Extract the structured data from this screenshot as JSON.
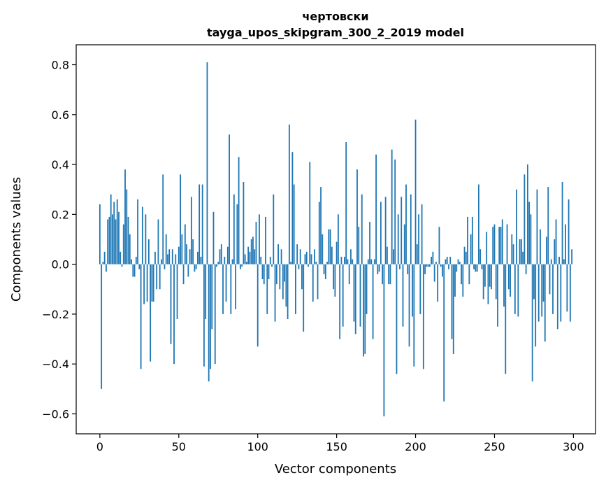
{
  "chart_data": {
    "type": "bar",
    "title": "чертовски",
    "subtitle": "tayga_upos_skipgram_300_2_2019 model",
    "xlabel": "Vector components",
    "ylabel": "Components values",
    "xlim": [
      -15,
      314
    ],
    "ylim": [
      -0.68,
      0.88
    ],
    "xticks": [
      0,
      50,
      100,
      150,
      200,
      250,
      300
    ],
    "yticks": [
      -0.6,
      -0.4,
      -0.2,
      0.0,
      0.2,
      0.4,
      0.6,
      0.8
    ],
    "ytick_labels": [
      "−0.6",
      "−0.4",
      "−0.2",
      "0.0",
      "0.2",
      "0.4",
      "0.6",
      "0.8"
    ],
    "bar_color": "#1f77b4",
    "grid": false,
    "values": [
      0.24,
      -0.5,
      0.01,
      0.05,
      -0.03,
      0.18,
      0.19,
      0.28,
      0.2,
      0.25,
      0.18,
      0.26,
      0.21,
      0.05,
      -0.01,
      0.16,
      0.38,
      0.3,
      0.19,
      0.12,
      0.02,
      -0.05,
      -0.05,
      0.03,
      0.26,
      -0.02,
      -0.42,
      0.23,
      -0.16,
      0.2,
      -0.15,
      0.1,
      -0.39,
      -0.15,
      -0.15,
      0.05,
      -0.1,
      0.18,
      -0.1,
      0.02,
      0.36,
      -0.02,
      0.12,
      0.04,
      0.06,
      -0.32,
      0.06,
      -0.4,
      0.04,
      -0.22,
      0.07,
      0.36,
      0.12,
      -0.08,
      0.16,
      0.08,
      -0.05,
      0.06,
      0.27,
      0.1,
      -0.03,
      -0.02,
      0.05,
      0.32,
      0.03,
      0.32,
      -0.41,
      -0.22,
      0.81,
      -0.47,
      -0.42,
      -0.26,
      0.21,
      -0.4,
      -0.01,
      0.01,
      0.06,
      0.08,
      -0.2,
      0.03,
      -0.15,
      0.07,
      0.52,
      -0.2,
      0.02,
      0.28,
      -0.18,
      0.24,
      0.43,
      -0.02,
      -0.01,
      0.33,
      0.04,
      0.01,
      0.07,
      0.05,
      0.1,
      0.11,
      0.06,
      0.17,
      -0.33,
      0.2,
      0.03,
      -0.06,
      -0.08,
      0.19,
      -0.2,
      -0.06,
      0.03,
      -0.01,
      0.28,
      -0.23,
      -0.08,
      0.08,
      -0.1,
      0.06,
      -0.14,
      -0.07,
      -0.17,
      -0.22,
      0.56,
      0.01,
      0.45,
      0.32,
      -0.2,
      0.08,
      -0.02,
      0.06,
      -0.1,
      -0.27,
      0.04,
      0.05,
      -0.01,
      0.41,
      0.04,
      -0.15,
      0.06,
      0.01,
      -0.14,
      0.25,
      0.31,
      0.12,
      -0.04,
      -0.06,
      0.01,
      0.14,
      0.14,
      0.07,
      -0.1,
      -0.13,
      0.09,
      0.2,
      -0.3,
      0.03,
      -0.25,
      0.03,
      0.49,
      0.02,
      -0.08,
      0.06,
      0.02,
      -0.23,
      -0.28,
      0.38,
      0.15,
      -0.25,
      0.28,
      -0.37,
      -0.36,
      -0.2,
      0.02,
      0.17,
      0.02,
      -0.3,
      0.02,
      0.44,
      -0.04,
      -0.03,
      0.25,
      -0.08,
      -0.61,
      0.27,
      0.07,
      -0.08,
      -0.08,
      0.46,
      0.06,
      0.42,
      -0.44,
      0.2,
      -0.02,
      0.27,
      -0.25,
      0.16,
      0.32,
      -0.04,
      -0.33,
      0.28,
      -0.21,
      -0.41,
      0.58,
      0.08,
      0.2,
      -0.2,
      0.24,
      -0.42,
      -0.04,
      -0.01,
      -0.01,
      -0.01,
      0.03,
      0.05,
      -0.07,
      0.01,
      -0.15,
      0.15,
      -0.01,
      -0.05,
      -0.55,
      0.02,
      0.03,
      -0.02,
      0.03,
      -0.3,
      -0.36,
      -0.13,
      -0.03,
      0.02,
      0.01,
      -0.08,
      -0.13,
      0.07,
      0.05,
      0.19,
      -0.08,
      0.12,
      0.19,
      -0.02,
      -0.03,
      -0.03,
      0.32,
      0.06,
      -0.02,
      -0.14,
      -0.09,
      0.13,
      -0.16,
      -0.09,
      -0.1,
      0.15,
      0.16,
      -0.14,
      -0.25,
      0.15,
      0.15,
      0.18,
      -0.17,
      -0.44,
      0.16,
      -0.1,
      -0.13,
      0.12,
      0.08,
      -0.2,
      0.3,
      -0.21,
      0.1,
      0.1,
      0.05,
      0.36,
      -0.04,
      0.4,
      0.25,
      0.2,
      -0.47,
      -0.14,
      -0.33,
      0.3,
      -0.23,
      0.14,
      -0.21,
      -0.15,
      -0.31,
      0.11,
      0.31,
      -0.12,
      0.02,
      -0.2,
      0.1,
      0.18,
      -0.26,
      0.03,
      -0.23,
      0.33,
      0.02,
      0.16,
      -0.19,
      0.26,
      -0.23,
      0.06
    ]
  }
}
